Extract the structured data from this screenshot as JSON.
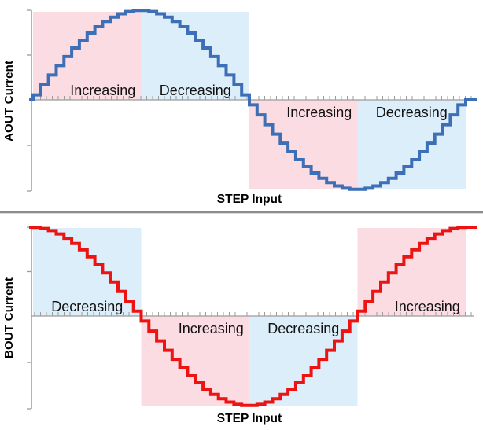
{
  "figure": {
    "title": "",
    "background": "#ffffff",
    "divider_color": "#8b8b8b"
  },
  "chart_data": [
    {
      "type": "line",
      "style": "stepped-microstep-staircase",
      "waveform": "sine",
      "x_span_degrees": 360,
      "steps_per_quarter": 14,
      "amplitude": 1,
      "y_range": [
        -1,
        1
      ],
      "xlabel": "STEP Input",
      "ylabel": "AOUT Current",
      "line_color": "#3d6fb7",
      "axis_color": "#9c9c9c",
      "zero_line_step_ticks": 75,
      "grid": false,
      "legend": false,
      "regions": [
        {
          "quarter": 1,
          "label": "Increasing",
          "half": "positive",
          "fill": "#fbdce3"
        },
        {
          "quarter": 2,
          "label": "Decreasing",
          "half": "positive",
          "fill": "#dceefa"
        },
        {
          "quarter": 3,
          "label": "Increasing",
          "half": "negative",
          "fill": "#fbdce3"
        },
        {
          "quarter": 4,
          "label": "Decreasing",
          "half": "negative",
          "fill": "#dceefa"
        }
      ]
    },
    {
      "type": "line",
      "style": "stepped-microstep-staircase",
      "waveform": "cosine",
      "x_span_degrees": 360,
      "steps_per_quarter": 14,
      "amplitude": 1,
      "y_range": [
        -1,
        1
      ],
      "xlabel": "STEP Input",
      "ylabel": "BOUT Current",
      "line_color": "#ec1313",
      "axis_color": "#9c9c9c",
      "zero_line_step_ticks": 75,
      "grid": false,
      "legend": false,
      "regions": [
        {
          "quarter": 1,
          "label": "Decreasing",
          "half": "positive",
          "fill": "#dceefa"
        },
        {
          "quarter": 2,
          "label": "Increasing",
          "half": "negative",
          "fill": "#fbdce3"
        },
        {
          "quarter": 3,
          "label": "Decreasing",
          "half": "negative",
          "fill": "#dceefa"
        },
        {
          "quarter": 4,
          "label": "Increasing",
          "half": "positive",
          "fill": "#fbdce3"
        }
      ]
    }
  ]
}
